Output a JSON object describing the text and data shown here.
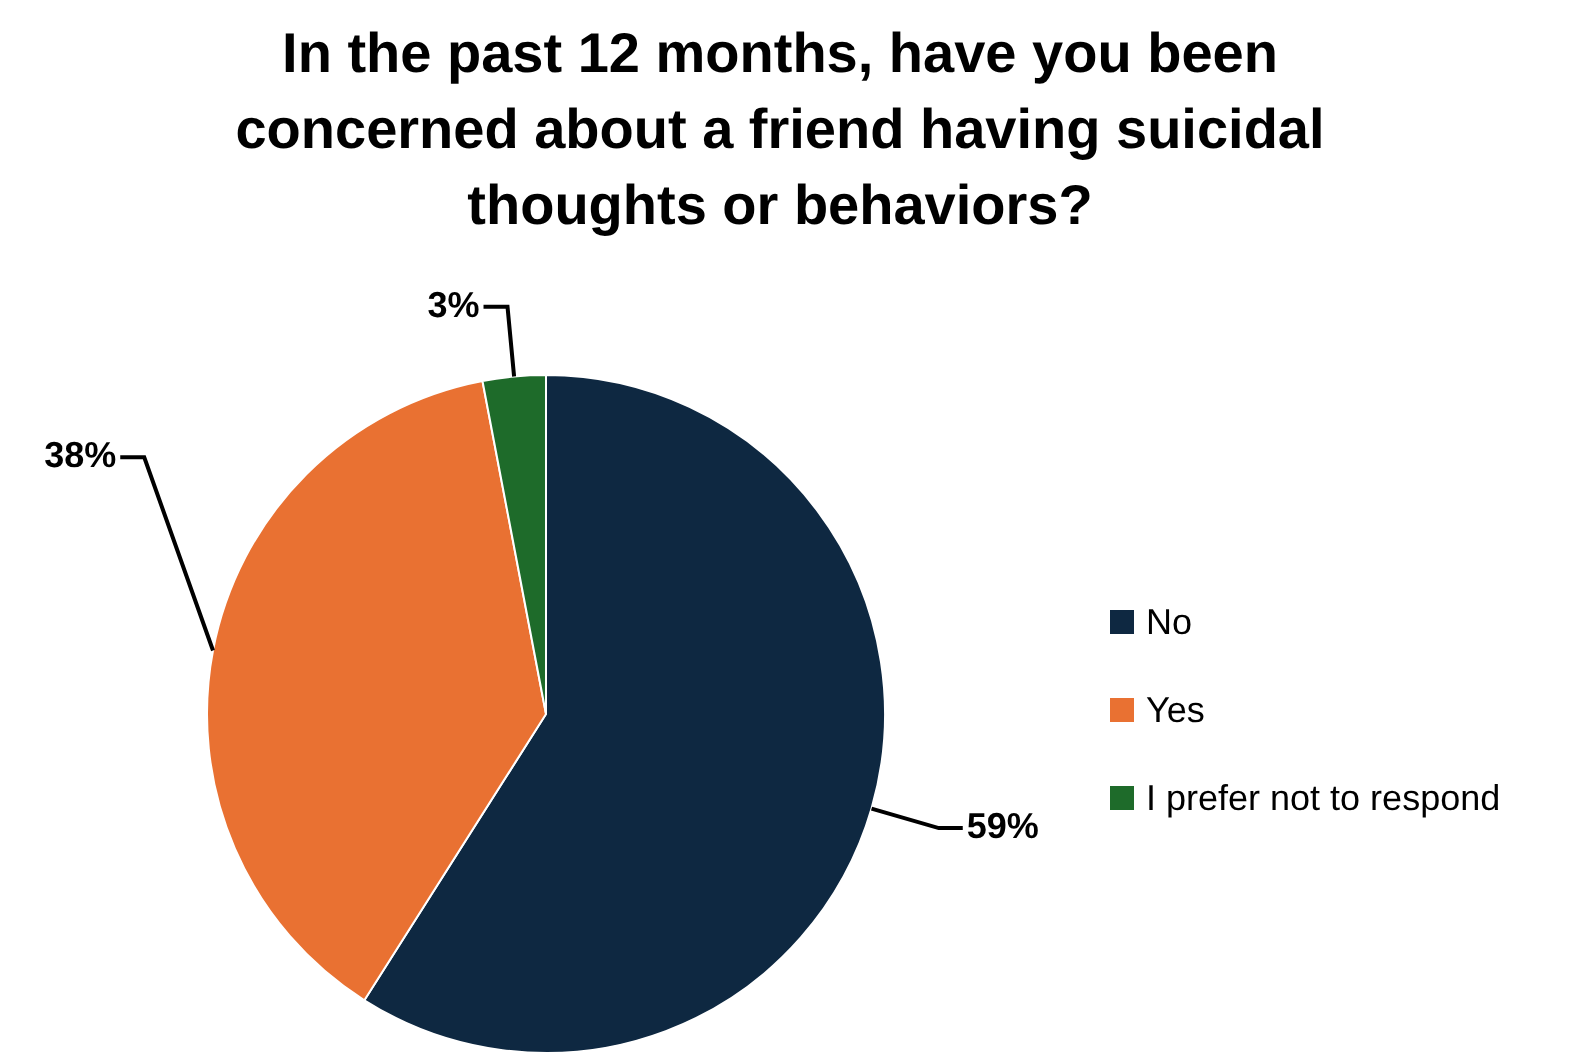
{
  "chart_data": {
    "type": "pie",
    "title": "In the past 12 months, have you been concerned about a friend having suicidal thoughts or behaviors?",
    "categories": [
      "No",
      "Yes",
      "I prefer not to respond"
    ],
    "values": [
      59,
      38,
      3
    ],
    "value_labels": [
      "59%",
      "38%",
      "3%"
    ],
    "colors": [
      "#0e2841",
      "#e97132",
      "#1e6b2a"
    ],
    "legend": "right"
  }
}
